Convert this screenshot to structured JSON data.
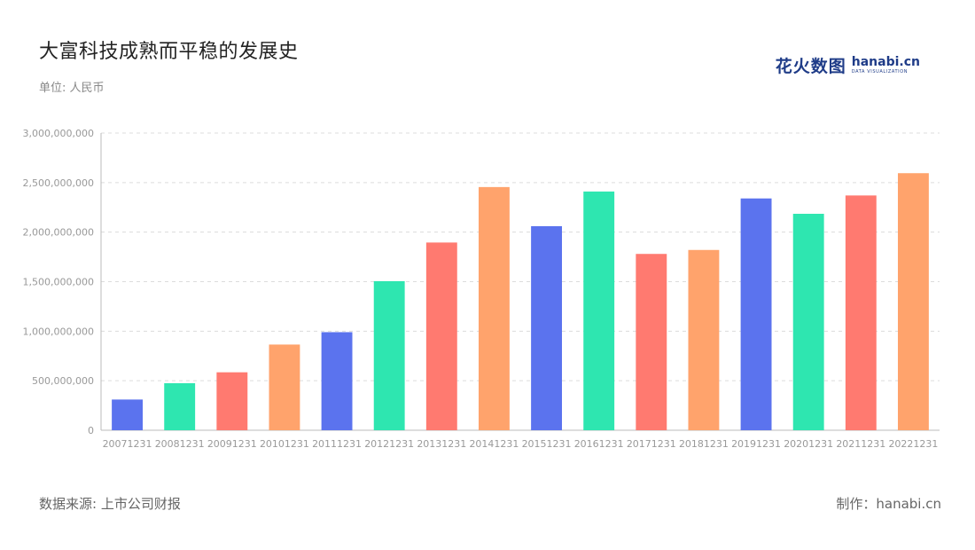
{
  "header": {
    "title": "大富科技成熟而平稳的发展史",
    "unit": "单位: 人民币"
  },
  "brand": {
    "cn": "花火数图",
    "en": "hanabi.cn",
    "sub": "DATA VISUALIZATION",
    "color": "#1f3c88"
  },
  "footer": {
    "source": "数据来源: 上市公司财报",
    "maker": "制作：hanabi.cn"
  },
  "chart_data": {
    "type": "bar",
    "categories": [
      "20071231",
      "20081231",
      "20091231",
      "20101231",
      "20111231",
      "20121231",
      "20131231",
      "20141231",
      "20151231",
      "20161231",
      "20171231",
      "20181231",
      "20191231",
      "20201231",
      "20211231",
      "20221231"
    ],
    "values": [
      310000000,
      475000000,
      585000000,
      865000000,
      990000000,
      1505000000,
      1895000000,
      2455000000,
      2060000000,
      2410000000,
      1780000000,
      1820000000,
      2340000000,
      2185000000,
      2370000000,
      2595000000
    ],
    "colors": [
      "#5b73ee",
      "#2ee6b0",
      "#ff7a70",
      "#ffa36c",
      "#5b73ee",
      "#2ee6b0",
      "#ff7a70",
      "#ffa36c",
      "#5b73ee",
      "#2ee6b0",
      "#ff7a70",
      "#ffa36c",
      "#5b73ee",
      "#2ee6b0",
      "#ff7a70",
      "#ffa36c"
    ],
    "y_ticks": [
      "0",
      "500,000,000",
      "1,000,000,000",
      "1,500,000,000",
      "2,000,000,000",
      "2,500,000,000",
      "3,000,000,000"
    ],
    "ylim": [
      0,
      3000000000
    ],
    "grid": true,
    "xlabel": "",
    "ylabel": ""
  }
}
